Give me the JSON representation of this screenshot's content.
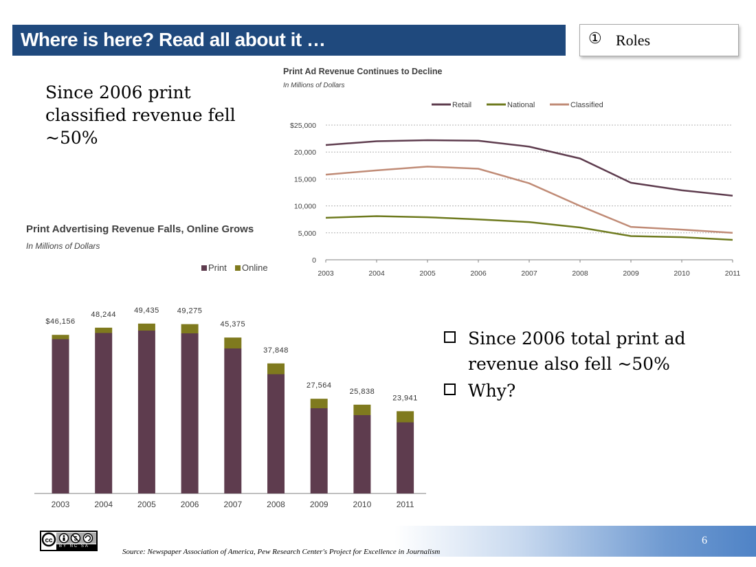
{
  "slide": {
    "title": "Where is here?  Read all about it …",
    "roles_icon": "①",
    "roles_label": "Roles",
    "claim": "Since 2006 print classified revenue fell ~50%",
    "bullets": [
      "Since 2006 total print ad revenue also fell ~50%",
      "Why?"
    ],
    "page_number": "6",
    "source": "Source:  Newspaper Association of America, Pew Research Center's Project for Excellence in Journalism",
    "license_icon": "cc-by-nc-sa-icon",
    "license_text": "BY NC SA"
  },
  "chart_data": [
    {
      "type": "line",
      "title": "Print Ad Revenue Continues to Decline",
      "subtitle": "In Millions of Dollars",
      "x": [
        "2003",
        "2004",
        "2005",
        "2006",
        "2007",
        "2008",
        "2009",
        "2010",
        "2011"
      ],
      "ylim": [
        0,
        25000
      ],
      "yticks": [
        "0",
        "5,000",
        "10,000",
        "15,000",
        "20,000",
        "$25,000"
      ],
      "ytick_values": [
        0,
        5000,
        10000,
        15000,
        20000,
        25000
      ],
      "grid": true,
      "legend_position": "top",
      "series": [
        {
          "name": "Retail",
          "color": "#5e3c4e",
          "values": [
            21300,
            22000,
            22200,
            22100,
            21000,
            18800,
            14300,
            12900,
            11900
          ]
        },
        {
          "name": "National",
          "color": "#6e7a1e",
          "values": [
            7800,
            8100,
            7900,
            7500,
            7000,
            6000,
            4400,
            4200,
            3700
          ]
        },
        {
          "name": "Classified",
          "color": "#c08b76",
          "values": [
            15800,
            16600,
            17300,
            16900,
            14200,
            10000,
            6100,
            5600,
            5000
          ]
        }
      ]
    },
    {
      "type": "bar",
      "stacked": true,
      "title": "Print Advertising Revenue Falls, Online Grows",
      "subtitle": "In Millions of Dollars",
      "categories": [
        "2003",
        "2004",
        "2005",
        "2006",
        "2007",
        "2008",
        "2009",
        "2010",
        "2011"
      ],
      "totals": [
        46156,
        48244,
        49435,
        49275,
        45375,
        37848,
        27564,
        25838,
        23941
      ],
      "total_labels": [
        "$46,156",
        "48,244",
        "49,435",
        "49,275",
        "45,375",
        "37,848",
        "27,564",
        "25,838",
        "23,941"
      ],
      "ylim": [
        0,
        50000
      ],
      "legend_position": "top-right",
      "series": [
        {
          "name": "Print",
          "color": "#5e3c4e",
          "values": [
            44900,
            46700,
            47400,
            46600,
            42200,
            34700,
            24800,
            22800,
            20700
          ]
        },
        {
          "name": "Online",
          "color": "#7f7a1e",
          "values": [
            1256,
            1544,
            2035,
            2675,
            3175,
            3148,
            2764,
            3038,
            3241
          ]
        }
      ]
    }
  ]
}
